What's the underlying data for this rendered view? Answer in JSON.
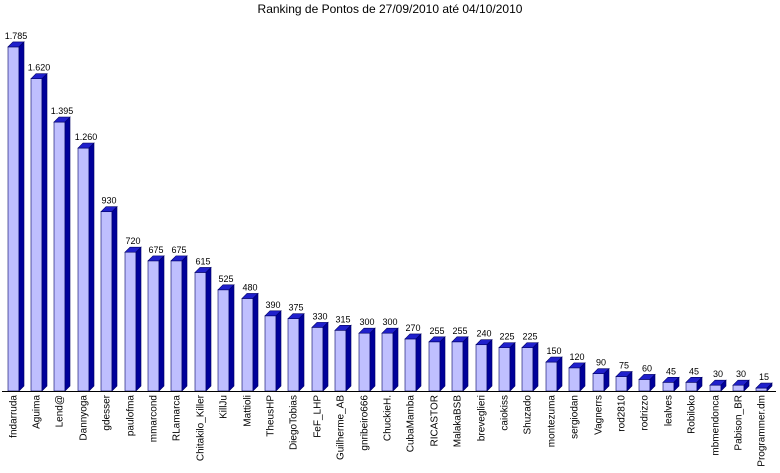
{
  "chart_data": {
    "type": "bar",
    "title": "Ranking de Pontos de 27/09/2010 até 04/10/2010",
    "xlabel": "",
    "ylabel": "",
    "ylim": [
      0,
      1800
    ],
    "grid": false,
    "legend": "none",
    "colors": {
      "bar_front": "#bfbfff",
      "bar_top": "#2020cc",
      "bar_side": "#00009a",
      "bar_outline": "#000066",
      "axis": "#000000",
      "background": "#ffffff"
    },
    "categories": [
      "fndarruda",
      "Aguima",
      "Lend@",
      "Dannyoga",
      "gdesser",
      "paulofma",
      "mmarcond",
      "RLamarca",
      "Chitakilo_Killer",
      "KillJu",
      "Mattioli",
      "TheusHP",
      "DiegoTobias",
      "FeF_LHP",
      "Guilherme_AB",
      "gnribeiro666",
      "ChuckieH.",
      "CubaMamba",
      "RICASTOR",
      "MalakaBSB",
      "breveglieri",
      "caiokiss",
      "Shuzado",
      "montezuma",
      "sergiodan",
      "Vagnerrs",
      "rod2810",
      "rodrizzo",
      "lealves",
      "Robiloko",
      "mbmendonca",
      "Pabison_BR",
      "Programmer.dm"
    ],
    "values": [
      1785,
      1620,
      1395,
      1260,
      930,
      720,
      675,
      675,
      615,
      525,
      480,
      390,
      375,
      330,
      315,
      300,
      300,
      270,
      255,
      255,
      240,
      225,
      225,
      150,
      120,
      90,
      75,
      60,
      45,
      45,
      30,
      30,
      15
    ],
    "data_labels": [
      "1.785",
      "1.620",
      "1.395",
      "1.260",
      "930",
      "720",
      "675",
      "675",
      "615",
      "525",
      "480",
      "390",
      "375",
      "330",
      "315",
      "300",
      "300",
      "270",
      "255",
      "255",
      "240",
      "225",
      "225",
      "150",
      "120",
      "90",
      "75",
      "60",
      "45",
      "45",
      "30",
      "30",
      "15"
    ]
  }
}
